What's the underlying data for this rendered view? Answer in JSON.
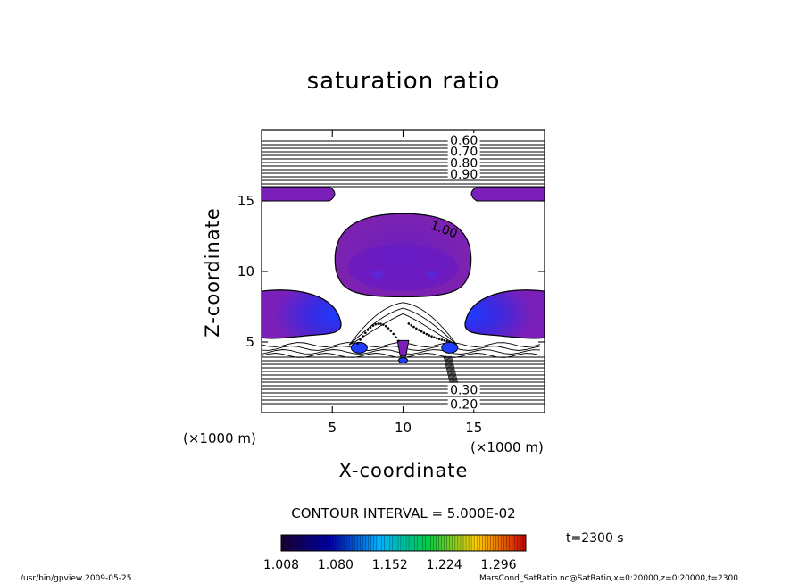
{
  "chart_data": {
    "type": "heatmap",
    "title": "saturation ratio",
    "xlabel": "X-coordinate",
    "ylabel": "Z-coordinate",
    "x_unit_label": "(×1000 m)",
    "z_unit_label": "(×1000 m)",
    "xlim": [
      0,
      20
    ],
    "ylim": [
      0,
      20
    ],
    "x_ticks": [
      5,
      10,
      15
    ],
    "y_ticks": [
      5,
      10,
      15
    ],
    "contour_interval_text": "CONTOUR INTERVAL = 5.000E-02",
    "contour_labels": [
      {
        "text": "0.60",
        "x": 14.3,
        "z": 19.3
      },
      {
        "text": "0.70",
        "x": 14.3,
        "z": 18.5
      },
      {
        "text": "0.80",
        "x": 14.3,
        "z": 17.7
      },
      {
        "text": "0.90",
        "x": 14.3,
        "z": 16.9
      },
      {
        "text": "1.00",
        "x": 12.9,
        "z": 13.0
      },
      {
        "text": "0.30",
        "x": 14.3,
        "z": 1.6
      },
      {
        "text": "0.20",
        "x": 14.3,
        "z": 0.6
      }
    ],
    "colorbar": {
      "ticks": [
        "1.008",
        "1.080",
        "1.152",
        "1.224",
        "1.296"
      ],
      "range": [
        1.008,
        1.332
      ],
      "colormap": [
        "#1a0033",
        "#0000aa",
        "#00b0ff",
        "#00cc44",
        "#ffcc00",
        "#cc0000"
      ]
    },
    "shaded_regions": [
      {
        "name": "central-dome",
        "x_range": [
          5,
          15
        ],
        "z_range": [
          8.2,
          14.1
        ],
        "approx_value": 1.04
      },
      {
        "name": "left-band",
        "x_range": [
          0,
          5.3
        ],
        "z_range": [
          15.0,
          16.0
        ],
        "approx_value": 1.02
      },
      {
        "name": "right-band",
        "x_range": [
          14.7,
          20
        ],
        "z_range": [
          15.0,
          16.0
        ],
        "approx_value": 1.02
      },
      {
        "name": "left-lobe",
        "x_range": [
          0,
          5.7
        ],
        "z_range": [
          5.2,
          8.8
        ],
        "approx_value": 1.1
      },
      {
        "name": "right-lobe",
        "x_range": [
          14.3,
          20
        ],
        "z_range": [
          5.2,
          8.8
        ],
        "approx_value": 1.1
      }
    ],
    "grid": false,
    "legend": "bottom"
  },
  "annotations": {
    "time": "t=2300 s",
    "footer_left": "/usr/bin/gpview  2009-05-25",
    "footer_right": "MarsCond_SatRatio.nc@SatRatio,x=0:20000,z=0:20000,t=2300"
  },
  "colors": {
    "purple": "#7a1fb8",
    "blue_core": "#1f3dff",
    "frame": "#000000"
  }
}
